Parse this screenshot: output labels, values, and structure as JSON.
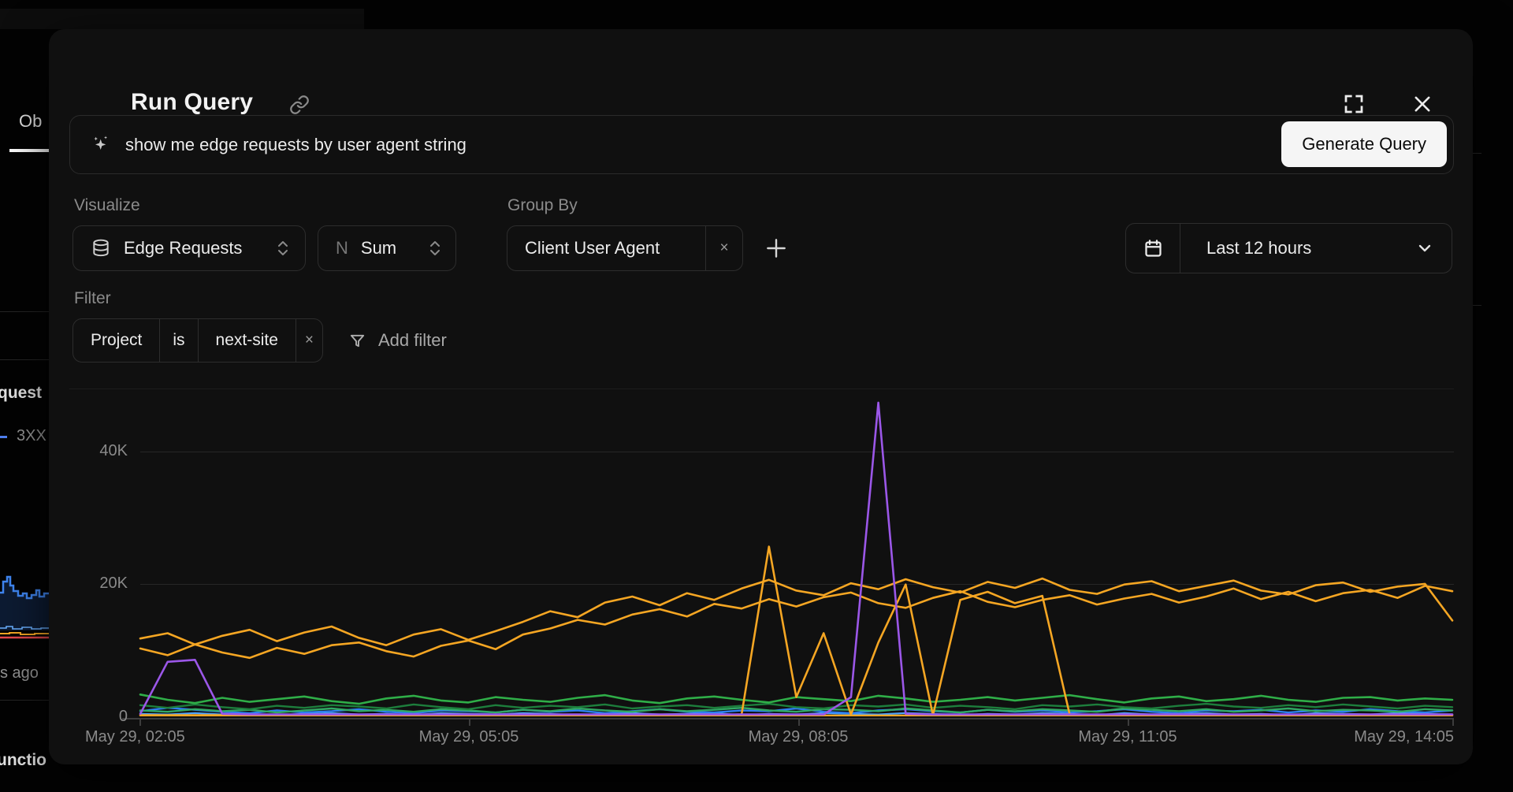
{
  "modal": {
    "title": "Run Query",
    "prompt": {
      "value": "show me edge requests by user agent string",
      "button": "Generate Query"
    },
    "visualize": {
      "label": "Visualize",
      "metric": "Edge Requests",
      "agg_prefix": "N",
      "agg": "Sum"
    },
    "group_by": {
      "label": "Group By",
      "chip": "Client User Agent",
      "remove": "×"
    },
    "time_range": {
      "label": "Last 12 hours"
    },
    "filter": {
      "label": "Filter",
      "field": "Project",
      "op": "is",
      "value": "next-site",
      "remove": "×",
      "add_label": "Add filter"
    }
  },
  "background": {
    "tab_partial": "Ob",
    "requests_partial": "quest",
    "legend_3xx": "3XX",
    "ago_partial": "s ago",
    "functions_partial": "unctio"
  },
  "chart_data": {
    "type": "line",
    "title": "",
    "xlabel": "",
    "ylabel": "",
    "legend": false,
    "grid": true,
    "unit": "thousands of edge requests",
    "x_axis": {
      "tick_labels": [
        "May 29, 02:05",
        "May 29, 05:05",
        "May 29, 08:05",
        "May 29, 11:05",
        "May 29, 14:05"
      ]
    },
    "y_axis": {
      "tick_labels": [
        "0",
        "20K",
        "40K"
      ],
      "tick_values": [
        0,
        20000,
        40000
      ],
      "max": 52000
    },
    "series": [
      {
        "id": "blue-light",
        "color": "#4da2f8",
        "width": 2.2,
        "values": [
          0.5,
          0.4,
          0.6,
          0.4,
          0.5,
          0.3,
          0.5,
          0.6,
          0.4,
          0.5,
          0.3,
          0.6,
          0.5,
          0.4,
          0.6,
          0.5,
          0.3,
          0.5,
          0.6,
          0.4,
          0.5,
          0.6,
          0.3,
          0.5,
          0.4,
          0.6,
          0.5,
          0.4,
          0.6,
          0.5,
          0.3,
          0.5,
          0.4,
          0.6,
          0.5,
          0.3,
          0.6,
          0.4,
          0.5,
          0.6,
          0.4,
          0.5,
          0.3,
          0.6,
          0.5,
          0.4,
          0.6,
          0.5,
          0.4
        ]
      },
      {
        "id": "blue",
        "color": "#2d7ff0",
        "width": 2.4,
        "values": [
          0.9,
          1.4,
          1.1,
          0.8,
          0.6,
          1.0,
          0.7,
          0.9,
          1.2,
          0.8,
          0.6,
          1.0,
          0.9,
          0.7,
          1.1,
          0.8,
          1.0,
          0.6,
          0.9,
          1.2,
          0.8,
          0.7,
          1.0,
          0.9,
          1.3,
          0.8,
          0.6,
          1.0,
          1.2,
          0.9,
          0.7,
          1.1,
          0.8,
          1.0,
          0.7,
          0.9,
          1.2,
          0.8,
          0.6,
          1.0,
          0.9,
          1.1,
          0.7,
          1.0,
          0.8,
          1.2,
          0.9,
          0.7,
          1.0
        ]
      },
      {
        "id": "green-mid",
        "color": "#31a865",
        "width": 2.4,
        "values": [
          1.0,
          0.8,
          1.2,
          0.9,
          1.1,
          0.7,
          1.0,
          1.3,
          0.9,
          1.1,
          0.8,
          1.2,
          1.0,
          0.7,
          1.1,
          0.9,
          1.3,
          1.0,
          0.8,
          1.2,
          0.9,
          1.1,
          1.4,
          1.0,
          0.8,
          1.2,
          1.1,
          0.9,
          1.3,
          1.0,
          0.7,
          1.1,
          0.9,
          1.2,
          1.0,
          0.8,
          1.3,
          1.1,
          0.9,
          1.2,
          0.8,
          1.0,
          1.3,
          0.9,
          1.1,
          1.0,
          0.8,
          1.2,
          1.0
        ]
      },
      {
        "id": "green-dark",
        "color": "#1d7e3c",
        "width": 2.4,
        "values": [
          1.8,
          1.4,
          1.9,
          1.5,
          1.2,
          1.7,
          1.4,
          1.8,
          1.6,
          1.3,
          1.9,
          1.5,
          1.2,
          1.8,
          1.4,
          1.7,
          1.5,
          1.9,
          1.3,
          1.6,
          1.8,
          1.4,
          1.7,
          2.0,
          1.5,
          1.3,
          1.8,
          1.6,
          1.9,
          1.4,
          1.7,
          1.5,
          1.2,
          1.8,
          1.6,
          1.9,
          1.5,
          1.3,
          1.7,
          2.0,
          1.6,
          1.4,
          1.8,
          1.5,
          1.9,
          1.6,
          1.3,
          1.7,
          1.5
        ]
      },
      {
        "id": "green-bright",
        "color": "#2fae48",
        "width": 2.6,
        "values": [
          3.4,
          2.6,
          2.1,
          2.9,
          2.3,
          2.7,
          3.1,
          2.4,
          2.0,
          2.8,
          3.2,
          2.5,
          2.2,
          3.0,
          2.6,
          2.3,
          2.9,
          3.3,
          2.5,
          2.1,
          2.8,
          3.1,
          2.6,
          2.2,
          3.0,
          2.7,
          2.4,
          3.2,
          2.8,
          2.3,
          2.6,
          3.0,
          2.5,
          2.9,
          3.3,
          2.7,
          2.2,
          2.8,
          3.1,
          2.4,
          2.7,
          3.2,
          2.6,
          2.3,
          2.9,
          3.0,
          2.5,
          2.8,
          2.6
        ]
      },
      {
        "id": "amber-baseline",
        "color": "#f5a623",
        "width": 2.2,
        "values": [
          0.25,
          0.25,
          0.25,
          0.25,
          0.25,
          0.25,
          0.25,
          0.25,
          0.25,
          0.25,
          0.25,
          0.25,
          0.25,
          0.25,
          0.25,
          0.25,
          0.25,
          0.25,
          0.25,
          0.25,
          0.25,
          0.25,
          0.25,
          0.25,
          0.25,
          0.25,
          0.25,
          0.25,
          0.25,
          0.25,
          0.25,
          0.25,
          0.25,
          0.25,
          0.25,
          0.25,
          0.25,
          0.25,
          0.25,
          0.25,
          0.25,
          0.25,
          0.25,
          0.25,
          0.25,
          0.25,
          0.25,
          0.25,
          0.25
        ]
      },
      {
        "id": "amber-volatile",
        "color": "#f5a623",
        "width": 2.6,
        "values": [
          0.3,
          0.3,
          0.3,
          0.3,
          0.3,
          0.3,
          0.3,
          0.3,
          0.3,
          0.3,
          0.3,
          0.3,
          0.3,
          0.3,
          0.3,
          0.3,
          0.3,
          0.3,
          0.3,
          0.3,
          0.3,
          0.3,
          0.4,
          25.6,
          3.0,
          12.6,
          0.4,
          11.2,
          19.9,
          0.3,
          17.6,
          18.8,
          17.1,
          18.2,
          0.4,
          0.3,
          0.3,
          0.3,
          0.3,
          0.3,
          0.3,
          0.3,
          0.3,
          0.3,
          0.3,
          0.3,
          0.3,
          0.3,
          0.3
        ]
      },
      {
        "id": "amber-2",
        "color": "#f5a623",
        "width": 2.6,
        "values": [
          10.3,
          9.3,
          10.9,
          9.7,
          8.9,
          10.4,
          9.5,
          10.8,
          11.2,
          9.9,
          9.1,
          10.7,
          11.5,
          10.2,
          12.4,
          13.3,
          14.6,
          13.9,
          15.4,
          16.2,
          15.1,
          17.0,
          16.3,
          17.7,
          16.6,
          18.0,
          18.7,
          17.1,
          16.4,
          17.9,
          18.9,
          17.3,
          16.5,
          17.6,
          18.3,
          16.9,
          17.8,
          18.5,
          17.2,
          18.1,
          19.3,
          17.7,
          18.8,
          17.4,
          18.6,
          19.1,
          17.9,
          19.7,
          18.9
        ]
      },
      {
        "id": "amber-1",
        "color": "#f5a623",
        "width": 2.6,
        "values": [
          11.8,
          12.6,
          10.9,
          12.2,
          13.1,
          11.4,
          12.7,
          13.6,
          11.9,
          10.8,
          12.4,
          13.2,
          11.6,
          12.9,
          14.3,
          15.9,
          15.0,
          17.2,
          18.1,
          16.8,
          18.6,
          17.6,
          19.3,
          20.6,
          19.0,
          18.3,
          20.1,
          19.2,
          20.7,
          19.5,
          18.7,
          20.3,
          19.4,
          20.8,
          19.1,
          18.5,
          19.9,
          20.4,
          18.9,
          19.7,
          20.5,
          19.0,
          18.4,
          19.8,
          20.2,
          18.8,
          19.6,
          20.0,
          14.5
        ]
      },
      {
        "id": "purple",
        "color": "#9b57e8",
        "width": 2.6,
        "values": [
          0.5,
          8.3,
          8.6,
          0.5,
          0.4,
          0.4,
          0.4,
          0.4,
          0.4,
          0.4,
          0.4,
          0.4,
          0.4,
          0.4,
          0.4,
          0.4,
          0.4,
          0.4,
          0.4,
          0.4,
          0.4,
          0.4,
          0.4,
          0.4,
          0.4,
          0.4,
          3.0,
          47.2,
          0.5,
          0.4,
          0.4,
          0.4,
          0.4,
          0.4,
          0.4,
          0.4,
          0.4,
          0.4,
          0.4,
          0.4,
          0.4,
          0.4,
          0.4,
          0.4,
          0.4,
          0.4,
          0.4,
          0.4,
          0.4
        ]
      }
    ]
  }
}
